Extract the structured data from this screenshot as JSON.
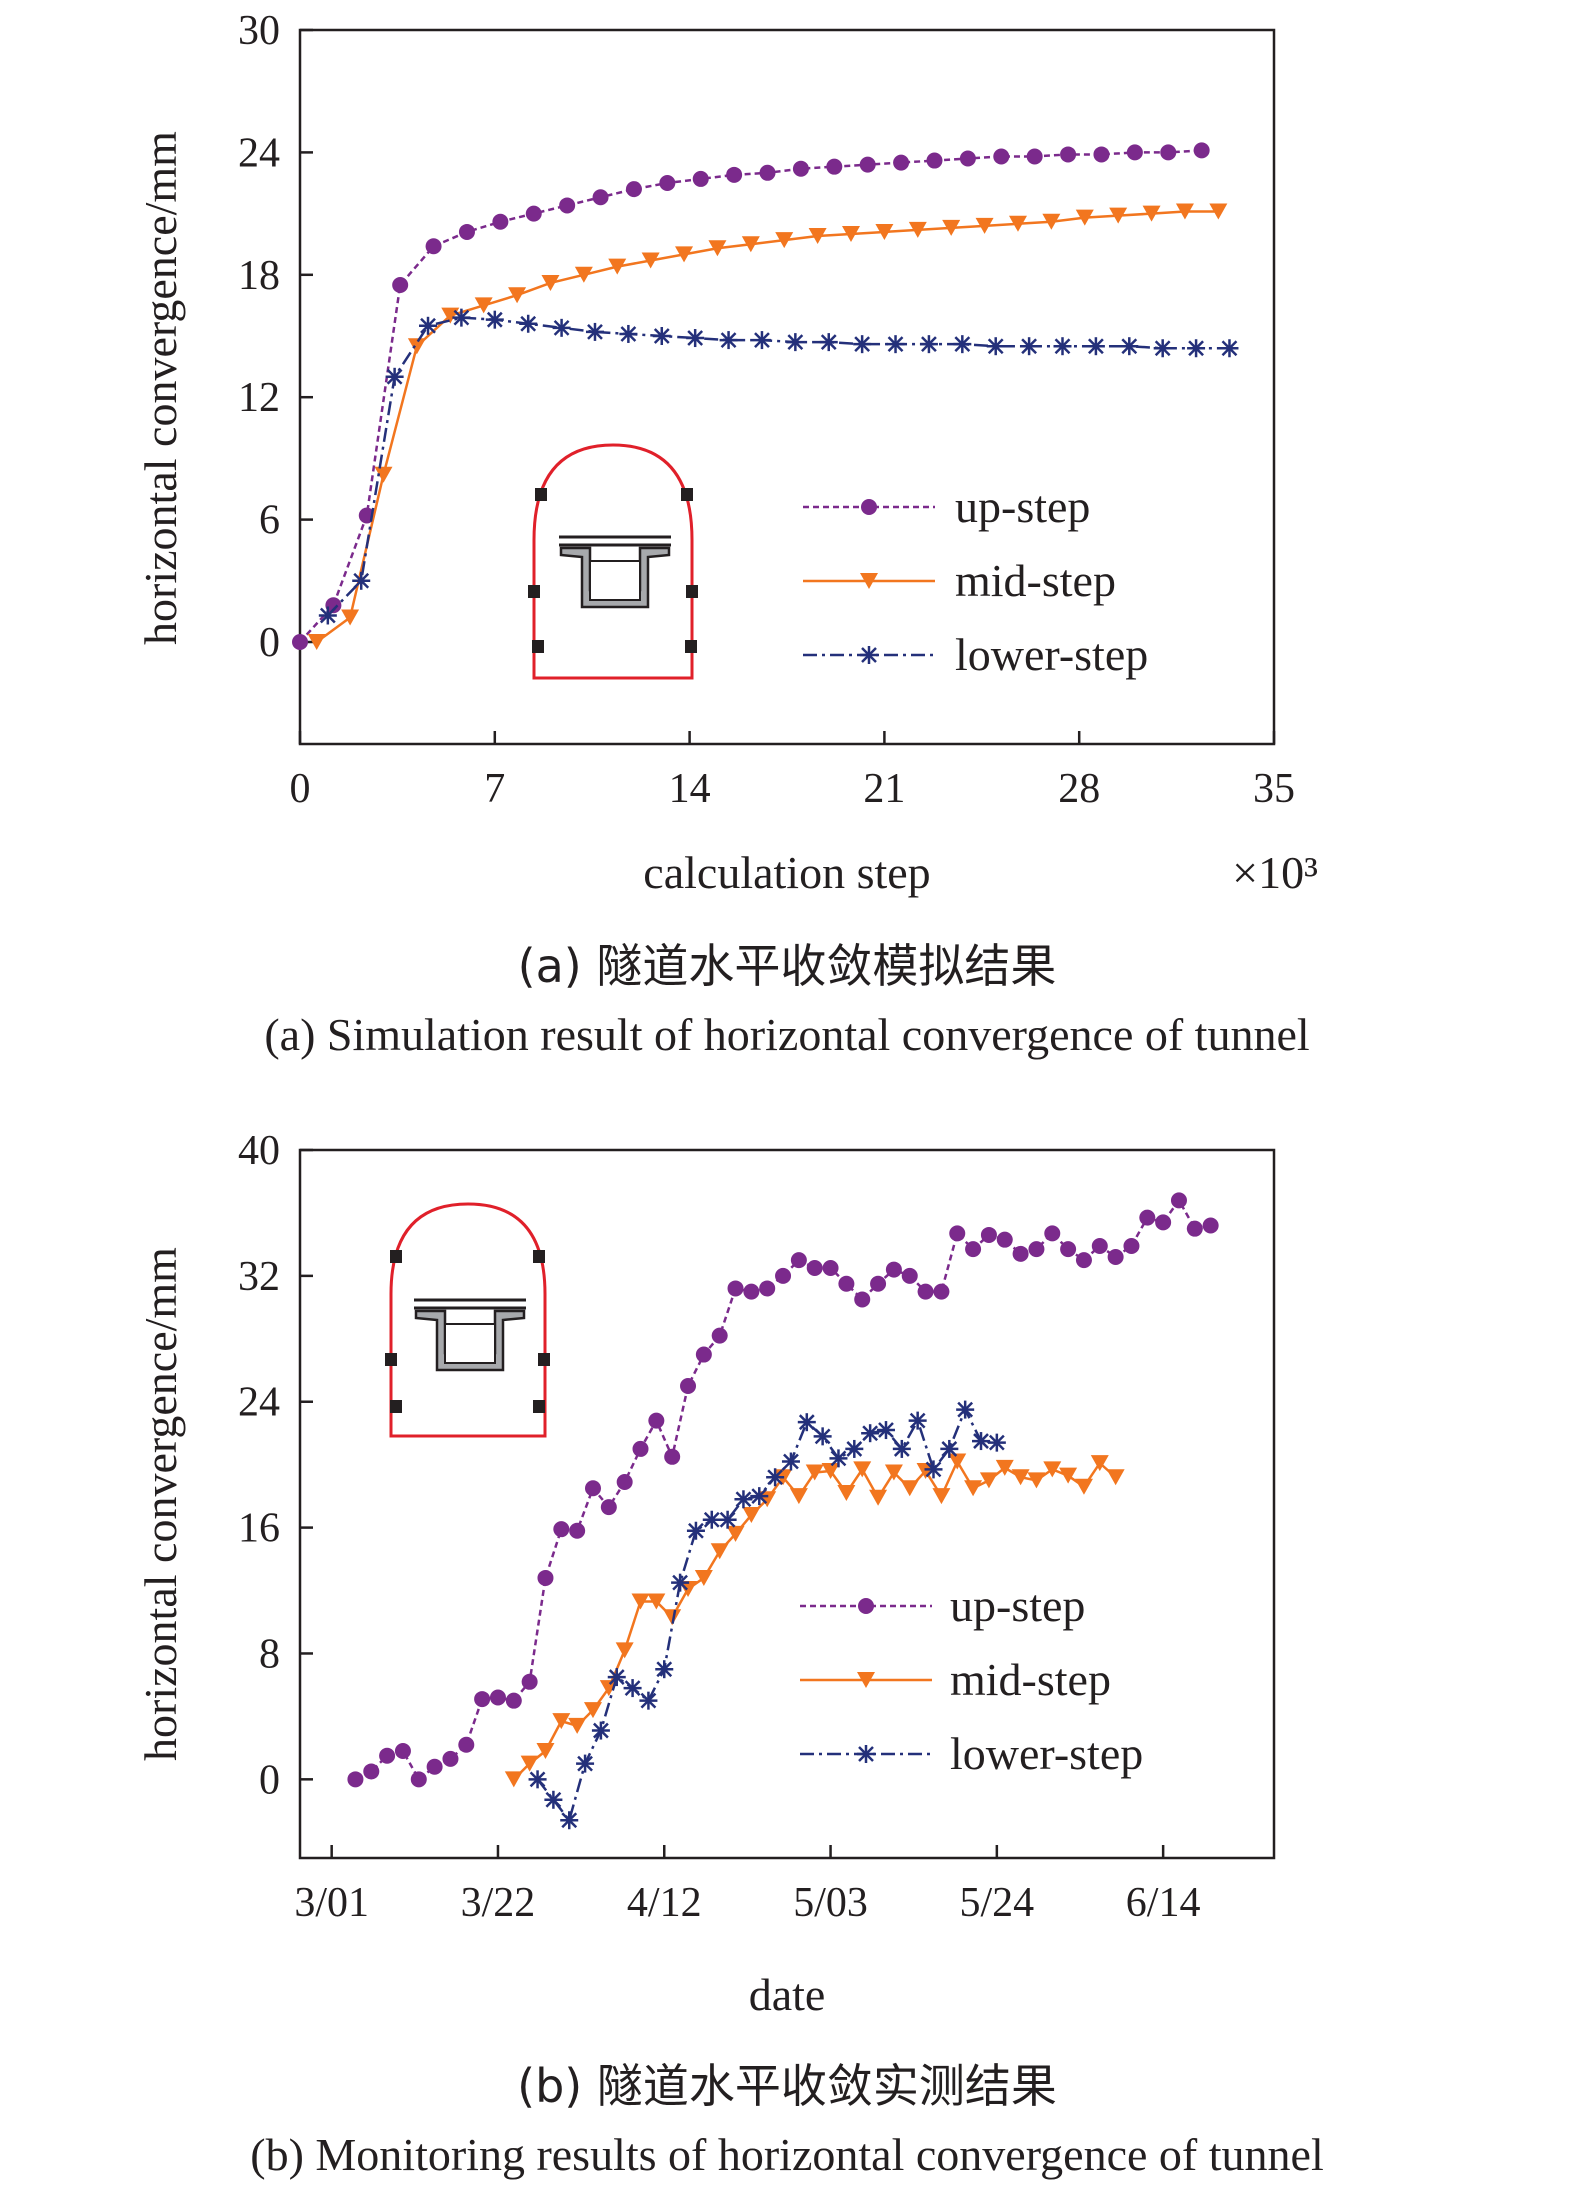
{
  "colors": {
    "up": "#7b2a8c",
    "mid": "#f2761f",
    "low": "#24307a",
    "tunnel": "#e0202a",
    "axis": "#231f20"
  },
  "chart_data": [
    {
      "type": "line",
      "xlabel": "calculation step",
      "x_multiplier": "×10³",
      "ylabel": "horizontal convergence/mm",
      "xlim": [
        0,
        35
      ],
      "ylim": [
        -5,
        30
      ],
      "xticks": [
        "0",
        "7",
        "14",
        "21",
        "28",
        "35"
      ],
      "yticks": [
        "0",
        "6",
        "12",
        "18",
        "24",
        "30"
      ],
      "legend_placement": "lower-right",
      "series": [
        {
          "name": "up-step",
          "marker": "circle",
          "x": [
            0,
            1.2,
            2.4,
            3.6,
            4.8,
            6.0,
            7.2,
            8.4,
            9.6,
            10.8,
            12.0,
            13.2,
            14.4,
            15.6,
            16.8,
            18.0,
            19.2,
            20.4,
            21.6,
            22.8,
            24.0,
            25.2,
            26.4,
            27.6,
            28.8,
            30.0,
            31.2,
            32.4
          ],
          "y": [
            0,
            1.8,
            6.2,
            17.5,
            19.4,
            20.1,
            20.6,
            21.0,
            21.4,
            21.8,
            22.2,
            22.5,
            22.7,
            22.9,
            23.0,
            23.2,
            23.3,
            23.4,
            23.5,
            23.6,
            23.7,
            23.8,
            23.8,
            23.9,
            23.9,
            24.0,
            24.0,
            24.1
          ]
        },
        {
          "name": "mid-step",
          "marker": "triangle-down",
          "x": [
            0.6,
            1.8,
            3.0,
            4.2,
            5.4,
            6.6,
            7.8,
            9.0,
            10.2,
            11.4,
            12.6,
            13.8,
            15.0,
            16.2,
            17.4,
            18.6,
            19.8,
            21.0,
            22.2,
            23.4,
            24.6,
            25.8,
            27.0,
            28.2,
            29.4,
            30.6,
            31.8,
            33.0
          ],
          "y": [
            0,
            1.2,
            8.2,
            14.5,
            16.0,
            16.5,
            17.0,
            17.6,
            18.0,
            18.4,
            18.7,
            19.0,
            19.3,
            19.5,
            19.7,
            19.9,
            20.0,
            20.1,
            20.2,
            20.3,
            20.4,
            20.5,
            20.6,
            20.8,
            20.9,
            21.0,
            21.1,
            21.1
          ]
        },
        {
          "name": "lower-step",
          "marker": "star",
          "x": [
            1.0,
            2.2,
            3.4,
            4.6,
            5.8,
            7.0,
            8.2,
            9.4,
            10.6,
            11.8,
            13.0,
            14.2,
            15.4,
            16.6,
            17.8,
            19.0,
            20.2,
            21.4,
            22.6,
            23.8,
            25.0,
            26.2,
            27.4,
            28.6,
            29.8,
            31.0,
            32.2,
            33.4
          ],
          "y": [
            1.3,
            3.0,
            13.0,
            15.5,
            15.9,
            15.8,
            15.6,
            15.4,
            15.2,
            15.1,
            15.0,
            14.9,
            14.8,
            14.8,
            14.7,
            14.7,
            14.6,
            14.6,
            14.6,
            14.6,
            14.5,
            14.5,
            14.5,
            14.5,
            14.5,
            14.4,
            14.4,
            14.4
          ]
        }
      ]
    },
    {
      "type": "line",
      "xlabel": "date",
      "ylabel": "horizontal convergence/mm",
      "xlim": [
        "2021-02-25",
        "2021-06-28"
      ],
      "ylim": [
        -5,
        40
      ],
      "xticks": [
        "3/01",
        "3/22",
        "4/12",
        "5/03",
        "5/24",
        "6/14"
      ],
      "yticks": [
        "0",
        "8",
        "16",
        "24",
        "32",
        "40"
      ],
      "legend_placement": "lower-right",
      "series": [
        {
          "name": "up-step",
          "marker": "circle",
          "x": [
            "2021-03-04",
            "2021-03-06",
            "2021-03-08",
            "2021-03-10",
            "2021-03-12",
            "2021-03-14",
            "2021-03-16",
            "2021-03-18",
            "2021-03-20",
            "2021-03-22",
            "2021-03-24",
            "2021-03-26",
            "2021-03-28",
            "2021-03-30",
            "2021-04-01",
            "2021-04-03",
            "2021-04-05",
            "2021-04-07",
            "2021-04-09",
            "2021-04-11",
            "2021-04-13",
            "2021-04-15",
            "2021-04-17",
            "2021-04-19",
            "2021-04-21",
            "2021-04-23",
            "2021-04-25",
            "2021-04-27",
            "2021-04-29",
            "2021-05-01",
            "2021-05-03",
            "2021-05-05",
            "2021-05-07",
            "2021-05-09",
            "2021-05-11",
            "2021-05-13",
            "2021-05-15",
            "2021-05-17",
            "2021-05-19",
            "2021-05-21",
            "2021-05-23",
            "2021-05-25",
            "2021-05-27",
            "2021-05-29",
            "2021-05-31",
            "2021-06-02",
            "2021-06-04",
            "2021-06-06",
            "2021-06-08",
            "2021-06-10",
            "2021-06-12",
            "2021-06-14",
            "2021-06-16",
            "2021-06-18",
            "2021-06-20"
          ],
          "y": [
            0,
            0.5,
            1.5,
            1.8,
            0,
            0.8,
            1.3,
            2.2,
            5.1,
            5.2,
            5.0,
            6.2,
            12.8,
            15.9,
            15.8,
            18.5,
            17.3,
            18.9,
            21.0,
            22.8,
            20.5,
            25.0,
            27.0,
            28.2,
            31.2,
            31.0,
            31.2,
            32.0,
            33.0,
            32.5,
            32.5,
            31.5,
            30.5,
            31.5,
            32.4,
            32.0,
            31.0,
            31.0,
            34.7,
            33.7,
            34.6,
            34.3,
            33.4,
            33.7,
            34.7,
            33.7,
            33.0,
            33.9,
            33.2,
            33.9,
            35.7,
            35.4,
            36.8,
            35.0,
            35.2
          ]
        },
        {
          "name": "mid-step",
          "marker": "triangle-down",
          "x": [
            "2021-03-24",
            "2021-03-26",
            "2021-03-28",
            "2021-03-30",
            "2021-04-01",
            "2021-04-03",
            "2021-04-05",
            "2021-04-07",
            "2021-04-09",
            "2021-04-11",
            "2021-04-13",
            "2021-04-15",
            "2021-04-17",
            "2021-04-19",
            "2021-04-21",
            "2021-04-23",
            "2021-04-25",
            "2021-04-27",
            "2021-04-29",
            "2021-05-01",
            "2021-05-03",
            "2021-05-05",
            "2021-05-07",
            "2021-05-09",
            "2021-05-11",
            "2021-05-13",
            "2021-05-15",
            "2021-05-17",
            "2021-05-19",
            "2021-05-21",
            "2021-05-23",
            "2021-05-25",
            "2021-05-27",
            "2021-05-29",
            "2021-05-31",
            "2021-06-02",
            "2021-06-04",
            "2021-06-06",
            "2021-06-08"
          ],
          "y": [
            0,
            1.0,
            1.8,
            3.7,
            3.4,
            4.4,
            5.8,
            8.2,
            11.3,
            11.3,
            10.3,
            12.1,
            12.8,
            14.5,
            15.6,
            16.8,
            17.8,
            19.2,
            18.0,
            19.5,
            19.6,
            18.2,
            19.7,
            17.9,
            19.5,
            18.5,
            19.6,
            18.0,
            20.2,
            18.5,
            19.0,
            19.8,
            19.2,
            19.0,
            19.7,
            19.3,
            18.6,
            20.1,
            19.2
          ]
        },
        {
          "name": "lower-step",
          "marker": "star",
          "x": [
            "2021-03-27",
            "2021-03-29",
            "2021-03-31",
            "2021-04-02",
            "2021-04-04",
            "2021-04-06",
            "2021-04-08",
            "2021-04-10",
            "2021-04-12",
            "2021-04-14",
            "2021-04-16",
            "2021-04-18",
            "2021-04-20",
            "2021-04-22",
            "2021-04-24",
            "2021-04-26",
            "2021-04-28",
            "2021-04-30",
            "2021-05-02",
            "2021-05-04",
            "2021-05-06",
            "2021-05-08",
            "2021-05-10",
            "2021-05-12",
            "2021-05-14",
            "2021-05-16",
            "2021-05-18",
            "2021-05-20",
            "2021-05-22",
            "2021-05-24"
          ],
          "y": [
            0,
            -1.3,
            -2.6,
            1.0,
            3.1,
            6.5,
            5.8,
            5.0,
            7.0,
            12.5,
            15.8,
            16.5,
            16.5,
            17.8,
            18.0,
            19.2,
            20.2,
            22.7,
            21.8,
            20.4,
            21.0,
            22.0,
            22.2,
            21.0,
            22.8,
            19.7,
            21.0,
            23.5,
            21.5,
            21.4
          ]
        }
      ]
    }
  ],
  "captions": {
    "a_zh": "(a) 隧道水平收敛模拟结果",
    "a_en": "(a) Simulation result of horizontal convergence of tunnel",
    "b_zh": "(b) 隧道水平收敛实测结果",
    "b_en": "(b) Monitoring results of horizontal convergence of tunnel"
  }
}
